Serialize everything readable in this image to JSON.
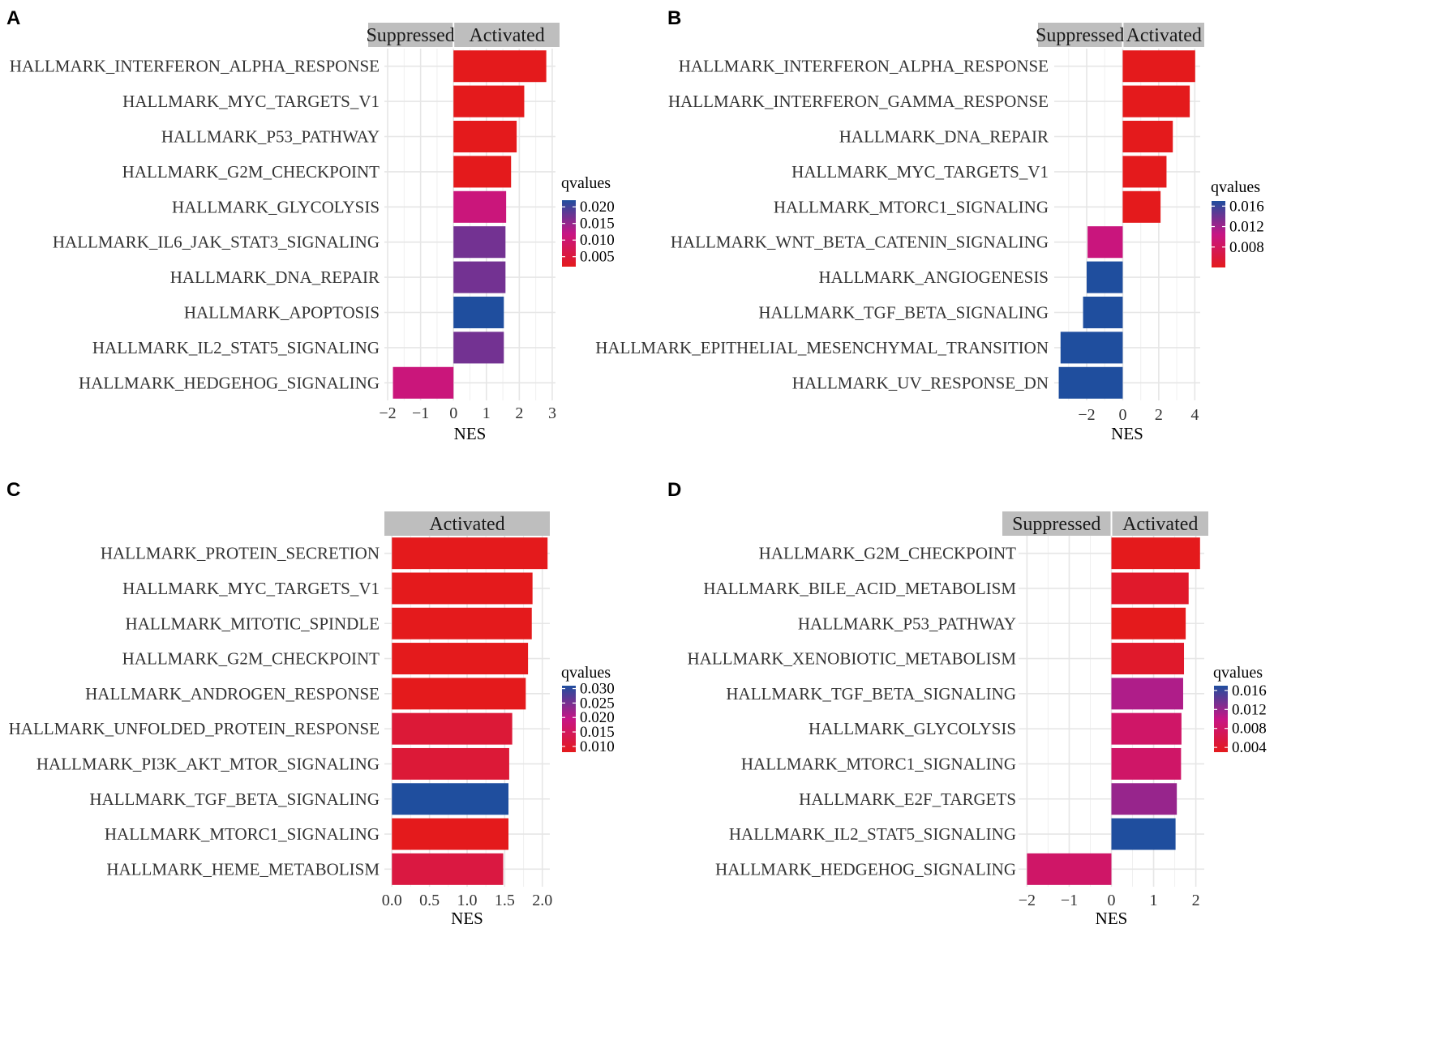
{
  "figure": {
    "colors": {
      "low": "#e41a1c",
      "mid": "#c71585",
      "high": "#1f4e9e",
      "grid": "#e6e6e6",
      "strip": "#bebebe"
    }
  },
  "chart_data": [
    {
      "panel": "A",
      "type": "bar",
      "orientation": "horizontal",
      "strips": [
        "Suppressed",
        "Activated"
      ],
      "xlabel": "NES",
      "xlim": [
        -2.1,
        3.1
      ],
      "xticks": [
        -2,
        -1,
        0,
        1,
        2,
        3
      ],
      "xtick_labels": [
        "−2",
        "−1",
        "0",
        "1",
        "2",
        "3"
      ],
      "categories": [
        "HALLMARK_INTERFERON_ALPHA_RESPONSE",
        "HALLMARK_MYC_TARGETS_V1",
        "HALLMARK_P53_PATHWAY",
        "HALLMARK_G2M_CHECKPOINT",
        "HALLMARK_GLYCOLYSIS",
        "HALLMARK_IL6_JAK_STAT3_SIGNALING",
        "HALLMARK_DNA_REPAIR",
        "HALLMARK_APOPTOSIS",
        "HALLMARK_IL2_STAT5_SIGNALING",
        "HALLMARK_HEDGEHOG_SIGNALING"
      ],
      "values": [
        2.82,
        2.15,
        1.92,
        1.75,
        1.6,
        1.58,
        1.58,
        1.53,
        1.53,
        -1.84
      ],
      "qvalues": [
        0.002,
        0.002,
        0.002,
        0.002,
        0.011,
        0.017,
        0.017,
        0.022,
        0.017,
        0.011
      ],
      "legend": {
        "title": "qvalues",
        "range": [
          0.002,
          0.022
        ],
        "breaks": [
          0.02,
          0.015,
          0.01,
          0.005
        ],
        "labels": [
          "0.020",
          "0.015",
          "0.010",
          "0.005"
        ]
      }
    },
    {
      "panel": "B",
      "type": "bar",
      "orientation": "horizontal",
      "strips": [
        "Suppressed",
        "Activated"
      ],
      "xlabel": "NES",
      "xlim": [
        -3.8,
        4.3
      ],
      "xticks": [
        -2,
        0,
        2,
        4
      ],
      "xtick_labels": [
        "−2",
        "0",
        "2",
        "4"
      ],
      "categories": [
        "HALLMARK_INTERFERON_ALPHA_RESPONSE",
        "HALLMARK_INTERFERON_GAMMA_RESPONSE",
        "HALLMARK_DNA_REPAIR",
        "HALLMARK_MYC_TARGETS_V1",
        "HALLMARK_MTORC1_SIGNALING",
        "HALLMARK_WNT_BETA_CATENIN_SIGNALING",
        "HALLMARK_ANGIOGENESIS",
        "HALLMARK_TGF_BETA_SIGNALING",
        "HALLMARK_EPITHELIAL_MESENCHYMAL_TRANSITION",
        "HALLMARK_UV_RESPONSE_DN"
      ],
      "values": [
        4.02,
        3.72,
        2.78,
        2.43,
        2.1,
        -1.95,
        -2.0,
        -2.2,
        -3.45,
        -3.55
      ],
      "qvalues": [
        0.004,
        0.004,
        0.004,
        0.004,
        0.004,
        0.01,
        0.017,
        0.017,
        0.017,
        0.017
      ],
      "legend": {
        "title": "qvalues",
        "range": [
          0.004,
          0.017
        ],
        "breaks": [
          0.016,
          0.012,
          0.008
        ],
        "labels": [
          "0.016",
          "0.012",
          "0.008"
        ]
      }
    },
    {
      "panel": "C",
      "type": "bar",
      "orientation": "horizontal",
      "strips": [
        "Activated"
      ],
      "xlabel": "NES",
      "xlim": [
        -0.1,
        2.1
      ],
      "xticks": [
        0,
        0.5,
        1,
        1.5,
        2
      ],
      "xtick_labels": [
        "0.0",
        "0.5",
        "1.0",
        "1.5",
        "2.0"
      ],
      "categories": [
        "HALLMARK_PROTEIN_SECRETION",
        "HALLMARK_MYC_TARGETS_V1",
        "HALLMARK_MITOTIC_SPINDLE",
        "HALLMARK_G2M_CHECKPOINT",
        "HALLMARK_ANDROGEN_RESPONSE",
        "HALLMARK_UNFOLDED_PROTEIN_RESPONSE",
        "HALLMARK_PI3K_AKT_MTOR_SIGNALING",
        "HALLMARK_TGF_BETA_SIGNALING",
        "HALLMARK_MTORC1_SIGNALING",
        "HALLMARK_HEME_METABOLISM"
      ],
      "values": [
        2.07,
        1.87,
        1.86,
        1.81,
        1.78,
        1.6,
        1.56,
        1.55,
        1.55,
        1.48
      ],
      "qvalues": [
        0.008,
        0.008,
        0.008,
        0.008,
        0.008,
        0.011,
        0.011,
        0.031,
        0.008,
        0.012
      ],
      "legend": {
        "title": "qvalues",
        "range": [
          0.008,
          0.031
        ],
        "breaks": [
          0.03,
          0.025,
          0.02,
          0.015,
          0.01
        ],
        "labels": [
          "0.030",
          "0.025",
          "0.020",
          "0.015",
          "0.010"
        ]
      }
    },
    {
      "panel": "D",
      "type": "bar",
      "orientation": "horizontal",
      "strips": [
        "Suppressed",
        "Activated"
      ],
      "xlabel": "NES",
      "xlim": [
        -2.2,
        2.2
      ],
      "xticks": [
        -2,
        -1,
        0,
        1,
        2
      ],
      "xtick_labels": [
        "−2",
        "−1",
        "0",
        "1",
        "2"
      ],
      "categories": [
        "HALLMARK_G2M_CHECKPOINT",
        "HALLMARK_BILE_ACID_METABOLISM",
        "HALLMARK_P53_PATHWAY",
        "HALLMARK_XENOBIOTIC_METABOLISM",
        "HALLMARK_TGF_BETA_SIGNALING",
        "HALLMARK_GLYCOLYSIS",
        "HALLMARK_MTORC1_SIGNALING",
        "HALLMARK_E2F_TARGETS",
        "HALLMARK_IL2_STAT5_SIGNALING",
        "HALLMARK_HEDGEHOG_SIGNALING"
      ],
      "values": [
        2.1,
        1.83,
        1.76,
        1.72,
        1.7,
        1.66,
        1.65,
        1.55,
        1.52,
        -2.0
      ],
      "qvalues": [
        0.003,
        0.004,
        0.003,
        0.004,
        0.011,
        0.008,
        0.008,
        0.012,
        0.017,
        0.008
      ],
      "legend": {
        "title": "qvalues",
        "range": [
          0.003,
          0.017
        ],
        "breaks": [
          0.016,
          0.012,
          0.008,
          0.004
        ],
        "labels": [
          "0.016",
          "0.012",
          "0.008",
          "0.004"
        ]
      }
    }
  ]
}
